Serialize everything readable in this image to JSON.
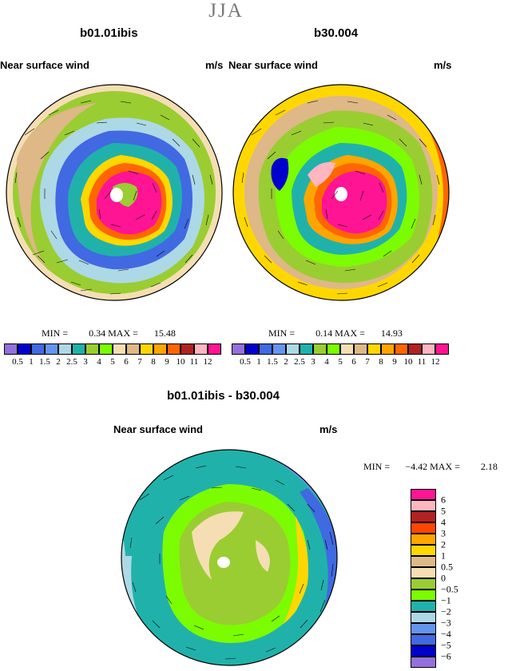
{
  "title": "JJA",
  "panel_left": {
    "title": "b01.01ibis",
    "label": "Near surface wind",
    "units": "m/s",
    "min_label": "MIN =",
    "min": "0.34",
    "max_label": "MAX =",
    "max": "15.48"
  },
  "panel_right": {
    "title": "b30.004",
    "label": "Near surface wind",
    "units": "m/s",
    "min_label": "MIN =",
    "min": "0.14",
    "max_label": "MAX =",
    "max": "14.93"
  },
  "panel_diff": {
    "title": "b01.01ibis - b30.004",
    "label": "Near surface wind",
    "units": "m/s",
    "min_label": "MIN =",
    "min": "−4.42",
    "max_label": "MAX =",
    "max": "2.18"
  },
  "colorbar_top": {
    "levels": [
      "0.5",
      "1",
      "1.5",
      "2",
      "2.5",
      "3",
      "4",
      "5",
      "6",
      "7",
      "8",
      "9",
      "10",
      "11",
      "12"
    ],
    "colors": [
      "#9370db",
      "#0000cd",
      "#4169e1",
      "#6495ed",
      "#add8e6",
      "#20b2aa",
      "#9acd32",
      "#7cfc00",
      "#f5deb3",
      "#deb887",
      "#ffd700",
      "#ffa500",
      "#ff6600",
      "#b22222",
      "#ffb6c1",
      "#ff1493"
    ]
  },
  "colorbar_diff": {
    "levels": [
      "6",
      "5",
      "4",
      "3",
      "2",
      "1",
      "0.5",
      "0",
      "−0.5",
      "−1",
      "−2",
      "−3",
      "−4",
      "−5",
      "−6"
    ],
    "colors": [
      "#ff1493",
      "#ffb6c1",
      "#b22222",
      "#ff4500",
      "#ffa500",
      "#ffd700",
      "#deb887",
      "#f5deb3",
      "#9acd32",
      "#7cfc00",
      "#20b2aa",
      "#add8e6",
      "#6495ed",
      "#4169e1",
      "#0000cd",
      "#9370db"
    ]
  }
}
